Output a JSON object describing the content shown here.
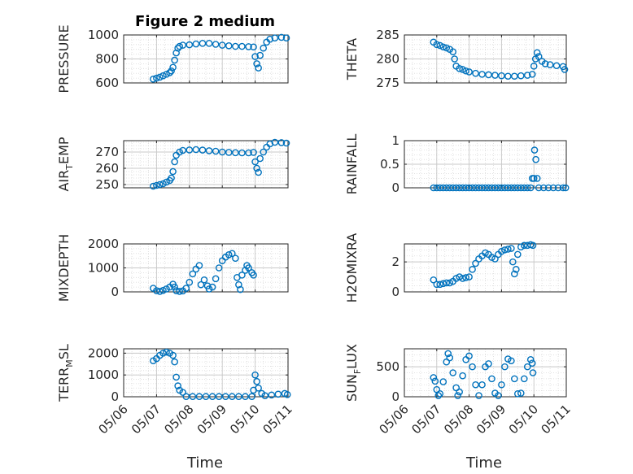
{
  "figure_title": "Figure 2 medium",
  "x_axis_label": "Time",
  "x_tick_labels": [
    "05/06",
    "05/07",
    "05/08",
    "05/09",
    "05/10",
    "05/11"
  ],
  "colors": {
    "marker": "#0072BD",
    "axis": "#262626",
    "grid": "#d9d9d9",
    "background": "#ffffff"
  },
  "chart_data": [
    {
      "type": "scatter",
      "ylabel": "PRESSURE",
      "ylabel_parts": [
        "PRESSURE"
      ],
      "ylim": [
        600,
        1000
      ],
      "yticks": [
        600,
        800,
        1000
      ],
      "grid": true,
      "xlim": [
        "05/06",
        "05/11"
      ],
      "points": [
        [
          6.9,
          632
        ],
        [
          7.0,
          640
        ],
        [
          7.1,
          648
        ],
        [
          7.2,
          660
        ],
        [
          7.3,
          672
        ],
        [
          7.4,
          685
        ],
        [
          7.45,
          700
        ],
        [
          7.5,
          730
        ],
        [
          7.55,
          790
        ],
        [
          7.6,
          850
        ],
        [
          7.65,
          890
        ],
        [
          7.7,
          905
        ],
        [
          7.8,
          915
        ],
        [
          8.0,
          918
        ],
        [
          8.2,
          925
        ],
        [
          8.4,
          930
        ],
        [
          8.6,
          930
        ],
        [
          8.8,
          922
        ],
        [
          9.0,
          915
        ],
        [
          9.2,
          910
        ],
        [
          9.4,
          905
        ],
        [
          9.6,
          905
        ],
        [
          9.8,
          902
        ],
        [
          9.95,
          900
        ],
        [
          10.0,
          820
        ],
        [
          10.05,
          760
        ],
        [
          10.1,
          725
        ],
        [
          10.15,
          830
        ],
        [
          10.25,
          890
        ],
        [
          10.35,
          940
        ],
        [
          10.45,
          965
        ],
        [
          10.6,
          975
        ],
        [
          10.8,
          980
        ],
        [
          10.95,
          975
        ]
      ]
    },
    {
      "type": "scatter",
      "ylabel": "THETA",
      "ylabel_parts": [
        "THETA"
      ],
      "ylim": [
        275,
        285
      ],
      "yticks": [
        275,
        280,
        285
      ],
      "grid": true,
      "xlim": [
        "05/06",
        "05/11"
      ],
      "points": [
        [
          6.9,
          283.5
        ],
        [
          7.0,
          283.0
        ],
        [
          7.1,
          282.8
        ],
        [
          7.2,
          282.5
        ],
        [
          7.3,
          282.3
        ],
        [
          7.4,
          282.0
        ],
        [
          7.5,
          281.5
        ],
        [
          7.55,
          280.0
        ],
        [
          7.6,
          278.5
        ],
        [
          7.7,
          278.0
        ],
        [
          7.8,
          277.8
        ],
        [
          7.9,
          277.5
        ],
        [
          8.0,
          277.3
        ],
        [
          8.2,
          277.0
        ],
        [
          8.4,
          276.8
        ],
        [
          8.6,
          276.7
        ],
        [
          8.8,
          276.6
        ],
        [
          9.0,
          276.5
        ],
        [
          9.2,
          276.4
        ],
        [
          9.4,
          276.4
        ],
        [
          9.6,
          276.5
        ],
        [
          9.8,
          276.6
        ],
        [
          9.95,
          276.8
        ],
        [
          10.0,
          278.5
        ],
        [
          10.05,
          280.0
        ],
        [
          10.1,
          281.3
        ],
        [
          10.15,
          280.5
        ],
        [
          10.25,
          279.5
        ],
        [
          10.35,
          279.0
        ],
        [
          10.5,
          278.8
        ],
        [
          10.7,
          278.6
        ],
        [
          10.9,
          278.4
        ],
        [
          10.95,
          277.8
        ]
      ]
    },
    {
      "type": "scatter",
      "ylabel": "AIR_TEMP",
      "ylabel_parts": [
        "AIR",
        "T",
        "EMP"
      ],
      "ylim": [
        248,
        277
      ],
      "yticks": [
        250,
        260,
        270
      ],
      "grid": true,
      "xlim": [
        "05/06",
        "05/11"
      ],
      "points": [
        [
          6.9,
          249
        ],
        [
          7.0,
          249.5
        ],
        [
          7.1,
          250
        ],
        [
          7.2,
          250.5
        ],
        [
          7.3,
          251.5
        ],
        [
          7.4,
          252.5
        ],
        [
          7.45,
          254
        ],
        [
          7.5,
          258
        ],
        [
          7.55,
          264
        ],
        [
          7.6,
          268
        ],
        [
          7.7,
          270
        ],
        [
          7.8,
          271
        ],
        [
          8.0,
          271.3
        ],
        [
          8.2,
          271.5
        ],
        [
          8.4,
          271.2
        ],
        [
          8.6,
          270.8
        ],
        [
          8.8,
          270.5
        ],
        [
          9.0,
          270
        ],
        [
          9.2,
          269.8
        ],
        [
          9.4,
          269.6
        ],
        [
          9.6,
          269.5
        ],
        [
          9.8,
          269.5
        ],
        [
          9.95,
          269.8
        ],
        [
          10.0,
          264
        ],
        [
          10.05,
          260
        ],
        [
          10.1,
          257.5
        ],
        [
          10.15,
          266
        ],
        [
          10.25,
          270
        ],
        [
          10.35,
          273
        ],
        [
          10.45,
          275
        ],
        [
          10.6,
          276
        ],
        [
          10.8,
          275.8
        ],
        [
          10.95,
          275.5
        ]
      ]
    },
    {
      "type": "scatter",
      "ylabel": "RAINFALL",
      "ylabel_parts": [
        "RAINFALL"
      ],
      "ylim": [
        0,
        1
      ],
      "yticks": [
        0,
        0.5,
        1
      ],
      "grid": true,
      "xlim": [
        "05/06",
        "05/11"
      ],
      "points": [
        [
          6.9,
          0
        ],
        [
          7.0,
          0
        ],
        [
          7.1,
          0
        ],
        [
          7.2,
          0
        ],
        [
          7.3,
          0
        ],
        [
          7.4,
          0
        ],
        [
          7.5,
          0
        ],
        [
          7.6,
          0
        ],
        [
          7.7,
          0
        ],
        [
          7.8,
          0
        ],
        [
          7.9,
          0
        ],
        [
          8.0,
          0
        ],
        [
          8.1,
          0
        ],
        [
          8.2,
          0
        ],
        [
          8.3,
          0
        ],
        [
          8.4,
          0
        ],
        [
          8.5,
          0
        ],
        [
          8.6,
          0
        ],
        [
          8.7,
          0
        ],
        [
          8.8,
          0
        ],
        [
          8.9,
          0
        ],
        [
          9.0,
          0
        ],
        [
          9.1,
          0
        ],
        [
          9.2,
          0
        ],
        [
          9.3,
          0
        ],
        [
          9.4,
          0
        ],
        [
          9.5,
          0
        ],
        [
          9.6,
          0
        ],
        [
          9.7,
          0
        ],
        [
          9.8,
          0
        ],
        [
          9.9,
          0
        ],
        [
          9.95,
          0.2
        ],
        [
          10.0,
          0.2
        ],
        [
          10.02,
          0.8
        ],
        [
          10.06,
          0.6
        ],
        [
          10.1,
          0.2
        ],
        [
          10.15,
          0
        ],
        [
          10.3,
          0
        ],
        [
          10.45,
          0
        ],
        [
          10.6,
          0
        ],
        [
          10.75,
          0
        ],
        [
          10.9,
          0
        ],
        [
          10.98,
          0
        ]
      ]
    },
    {
      "type": "scatter",
      "ylabel": "MIXDEPTH",
      "ylabel_parts": [
        "MIXDEPTH"
      ],
      "ylim": [
        0,
        2000
      ],
      "yticks": [
        0,
        1000,
        2000
      ],
      "grid": true,
      "xlim": [
        "05/06",
        "05/11"
      ],
      "points": [
        [
          6.9,
          150
        ],
        [
          7.0,
          50
        ],
        [
          7.1,
          20
        ],
        [
          7.2,
          60
        ],
        [
          7.3,
          120
        ],
        [
          7.4,
          200
        ],
        [
          7.5,
          320
        ],
        [
          7.55,
          200
        ],
        [
          7.6,
          50
        ],
        [
          7.7,
          20
        ],
        [
          7.8,
          40
        ],
        [
          7.9,
          150
        ],
        [
          8.0,
          400
        ],
        [
          8.1,
          750
        ],
        [
          8.2,
          950
        ],
        [
          8.3,
          1100
        ],
        [
          8.35,
          300
        ],
        [
          8.45,
          500
        ],
        [
          8.55,
          250
        ],
        [
          8.6,
          120
        ],
        [
          8.7,
          200
        ],
        [
          8.8,
          550
        ],
        [
          8.9,
          1000
        ],
        [
          9.0,
          1300
        ],
        [
          9.1,
          1450
        ],
        [
          9.2,
          1550
        ],
        [
          9.3,
          1600
        ],
        [
          9.4,
          1400
        ],
        [
          9.45,
          600
        ],
        [
          9.5,
          300
        ],
        [
          9.55,
          100
        ],
        [
          9.6,
          700
        ],
        [
          9.7,
          900
        ],
        [
          9.75,
          1100
        ],
        [
          9.8,
          1000
        ],
        [
          9.9,
          800
        ],
        [
          9.95,
          700
        ]
      ]
    },
    {
      "type": "scatter",
      "ylabel": "H2OMIXRA",
      "ylabel_parts": [
        "H2OMIXRA"
      ],
      "ylim": [
        0,
        3.2
      ],
      "yticks": [
        0,
        2
      ],
      "grid": true,
      "xlim": [
        "05/06",
        "05/11"
      ],
      "points": [
        [
          6.9,
          0.8
        ],
        [
          7.0,
          0.5
        ],
        [
          7.1,
          0.5
        ],
        [
          7.2,
          0.55
        ],
        [
          7.3,
          0.6
        ],
        [
          7.4,
          0.6
        ],
        [
          7.5,
          0.7
        ],
        [
          7.6,
          0.9
        ],
        [
          7.7,
          1.0
        ],
        [
          7.8,
          0.9
        ],
        [
          7.9,
          0.95
        ],
        [
          8.0,
          1.0
        ],
        [
          8.1,
          1.5
        ],
        [
          8.2,
          1.9
        ],
        [
          8.3,
          2.2
        ],
        [
          8.4,
          2.4
        ],
        [
          8.5,
          2.6
        ],
        [
          8.6,
          2.5
        ],
        [
          8.7,
          2.3
        ],
        [
          8.8,
          2.2
        ],
        [
          8.9,
          2.5
        ],
        [
          9.0,
          2.7
        ],
        [
          9.1,
          2.8
        ],
        [
          9.2,
          2.85
        ],
        [
          9.3,
          2.9
        ],
        [
          9.35,
          2.0
        ],
        [
          9.4,
          1.2
        ],
        [
          9.45,
          1.5
        ],
        [
          9.5,
          2.5
        ],
        [
          9.6,
          3.0
        ],
        [
          9.7,
          3.1
        ],
        [
          9.8,
          3.1
        ],
        [
          9.9,
          3.15
        ],
        [
          9.97,
          3.1
        ]
      ]
    },
    {
      "type": "scatter",
      "ylabel": "TERR_MSL",
      "ylabel_parts": [
        "TERR",
        "M",
        "SL"
      ],
      "ylim": [
        0,
        2200
      ],
      "yticks": [
        0,
        1000,
        2000
      ],
      "grid": true,
      "xlim": [
        "05/06",
        "05/11"
      ],
      "points": [
        [
          6.9,
          1650
        ],
        [
          7.0,
          1750
        ],
        [
          7.1,
          1900
        ],
        [
          7.2,
          2000
        ],
        [
          7.3,
          2050
        ],
        [
          7.4,
          2000
        ],
        [
          7.5,
          1900
        ],
        [
          7.55,
          1600
        ],
        [
          7.6,
          900
        ],
        [
          7.65,
          500
        ],
        [
          7.7,
          300
        ],
        [
          7.8,
          200
        ],
        [
          7.9,
          10
        ],
        [
          8.1,
          10
        ],
        [
          8.3,
          10
        ],
        [
          8.5,
          10
        ],
        [
          8.7,
          10
        ],
        [
          8.9,
          10
        ],
        [
          9.1,
          10
        ],
        [
          9.3,
          10
        ],
        [
          9.5,
          10
        ],
        [
          9.7,
          10
        ],
        [
          9.9,
          10
        ],
        [
          9.95,
          300
        ],
        [
          10.0,
          1000
        ],
        [
          10.05,
          700
        ],
        [
          10.1,
          400
        ],
        [
          10.2,
          150
        ],
        [
          10.3,
          50
        ],
        [
          10.5,
          80
        ],
        [
          10.7,
          120
        ],
        [
          10.9,
          150
        ],
        [
          10.98,
          100
        ]
      ]
    },
    {
      "type": "scatter",
      "ylabel": "SUN_FLUX",
      "ylabel_parts": [
        "SUN",
        "F",
        "LUX"
      ],
      "ylim": [
        0,
        800
      ],
      "yticks": [
        0,
        500
      ],
      "grid": true,
      "xlim": [
        "05/06",
        "05/11"
      ],
      "points": [
        [
          6.9,
          320
        ],
        [
          6.95,
          260
        ],
        [
          7.0,
          120
        ],
        [
          7.05,
          20
        ],
        [
          7.1,
          50
        ],
        [
          7.2,
          250
        ],
        [
          7.3,
          580
        ],
        [
          7.35,
          720
        ],
        [
          7.4,
          650
        ],
        [
          7.5,
          400
        ],
        [
          7.6,
          150
        ],
        [
          7.65,
          20
        ],
        [
          7.7,
          80
        ],
        [
          7.8,
          350
        ],
        [
          7.9,
          620
        ],
        [
          8.0,
          680
        ],
        [
          8.1,
          500
        ],
        [
          8.2,
          200
        ],
        [
          8.3,
          20
        ],
        [
          8.4,
          200
        ],
        [
          8.5,
          500
        ],
        [
          8.6,
          550
        ],
        [
          8.7,
          300
        ],
        [
          8.8,
          60
        ],
        [
          8.9,
          20
        ],
        [
          9.0,
          200
        ],
        [
          9.1,
          500
        ],
        [
          9.2,
          630
        ],
        [
          9.3,
          600
        ],
        [
          9.4,
          300
        ],
        [
          9.5,
          50
        ],
        [
          9.6,
          60
        ],
        [
          9.7,
          300
        ],
        [
          9.8,
          500
        ],
        [
          9.9,
          620
        ],
        [
          9.95,
          560
        ],
        [
          9.97,
          400
        ]
      ]
    }
  ]
}
